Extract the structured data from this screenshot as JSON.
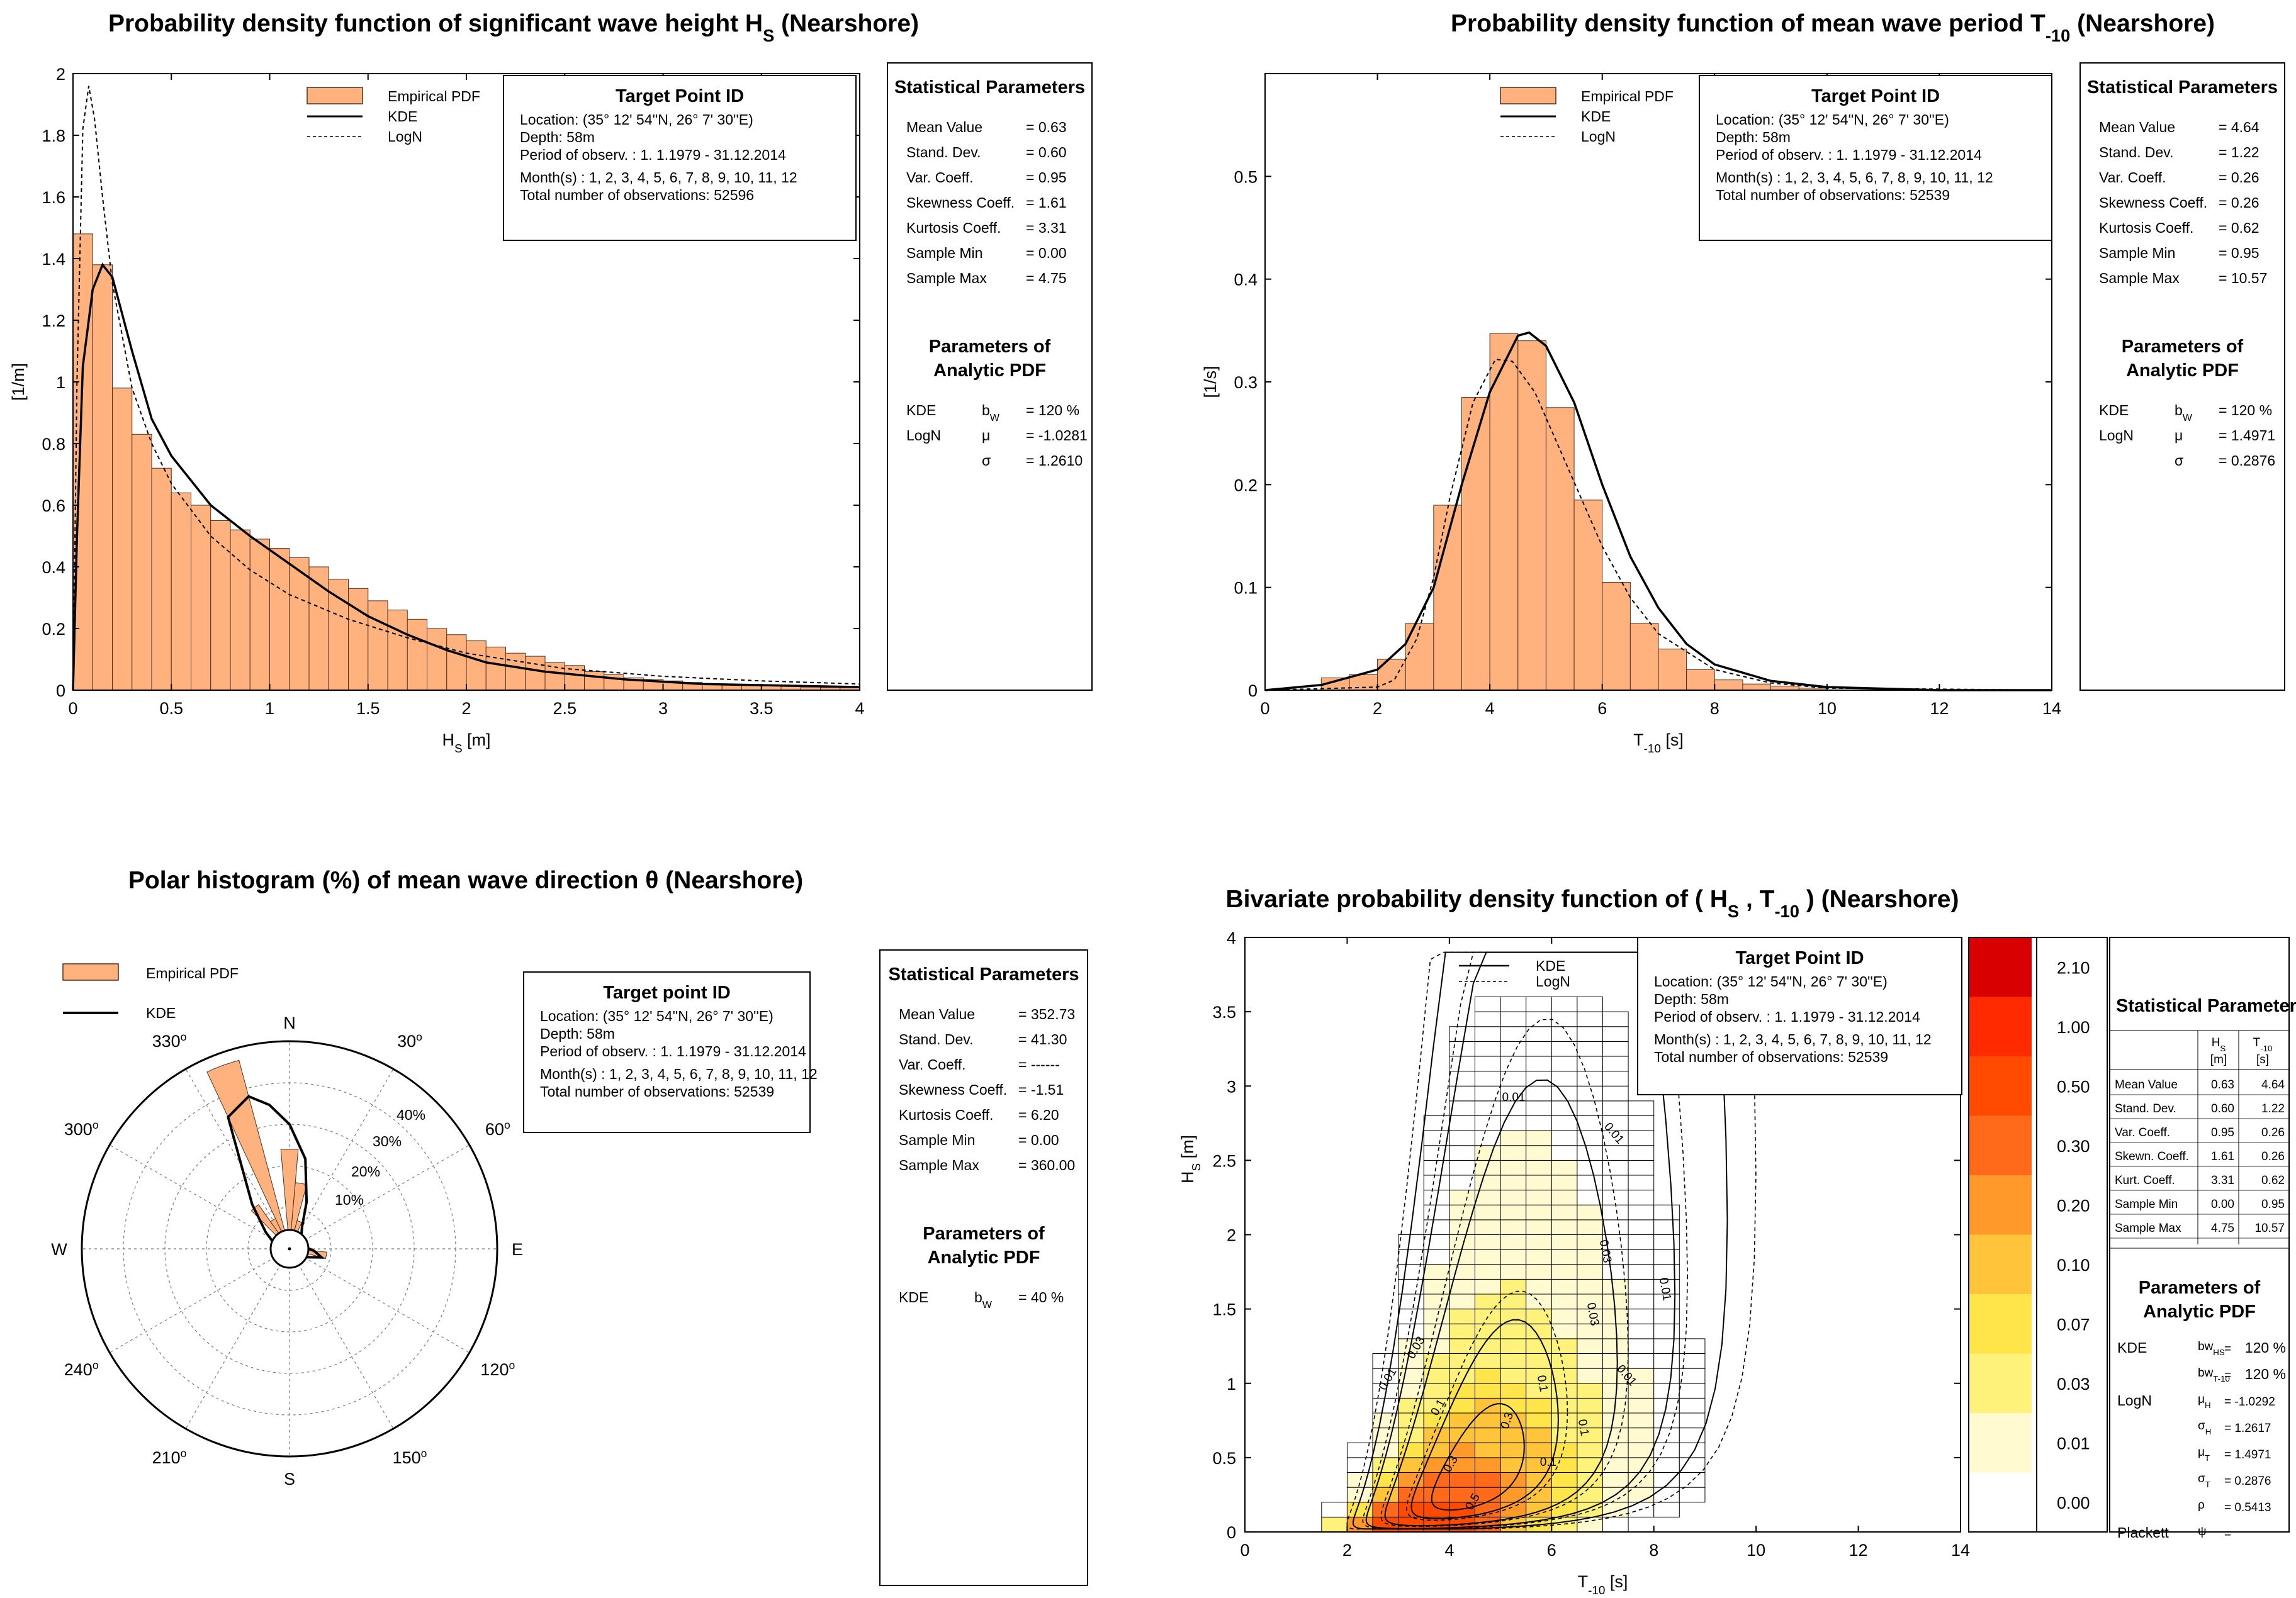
{
  "colors": {
    "bar": "#ffb27d",
    "bar_edge": "#4a3020",
    "line": "#000000"
  },
  "chart_data": [
    {
      "id": "hs_pdf",
      "type": "bar",
      "title_main": "Probability density function of significant wave height H",
      "title_sub": "S",
      "title_tail": "  (Nearshore)",
      "xlabel_main": "H",
      "xlabel_sub": "S",
      "xlabel_tail": " [m]",
      "ylabel": "[1/m]",
      "xlim": [
        0,
        4
      ],
      "ylim": [
        0,
        2
      ],
      "xticks": [
        "0",
        "0.5",
        "1",
        "1.5",
        "2",
        "2.5",
        "3",
        "3.5",
        "4"
      ],
      "yticks": [
        "0",
        "0.2",
        "0.4",
        "0.6",
        "0.8",
        "1",
        "1.2",
        "1.4",
        "1.6",
        "1.8",
        "2"
      ],
      "legend": [
        "Empirical PDF",
        "KDE",
        "LogN"
      ],
      "bin_width": 0.1,
      "bars": [
        1.48,
        1.38,
        0.98,
        0.83,
        0.72,
        0.64,
        0.6,
        0.55,
        0.52,
        0.49,
        0.46,
        0.43,
        0.4,
        0.36,
        0.33,
        0.29,
        0.26,
        0.23,
        0.2,
        0.18,
        0.16,
        0.14,
        0.12,
        0.11,
        0.09,
        0.08,
        0.06,
        0.05,
        0.04,
        0.035,
        0.03,
        0.025,
        0.02,
        0.018,
        0.016,
        0.014,
        0.012,
        0.01,
        0.009,
        0.008
      ],
      "kde": [
        [
          0,
          0
        ],
        [
          0.02,
          0.5
        ],
        [
          0.05,
          1.05
        ],
        [
          0.1,
          1.3
        ],
        [
          0.15,
          1.38
        ],
        [
          0.2,
          1.34
        ],
        [
          0.3,
          1.1
        ],
        [
          0.4,
          0.88
        ],
        [
          0.5,
          0.76
        ],
        [
          0.7,
          0.6
        ],
        [
          0.9,
          0.5
        ],
        [
          1.1,
          0.41
        ],
        [
          1.3,
          0.32
        ],
        [
          1.5,
          0.24
        ],
        [
          1.7,
          0.18
        ],
        [
          1.9,
          0.13
        ],
        [
          2.1,
          0.09
        ],
        [
          2.4,
          0.06
        ],
        [
          2.8,
          0.035
        ],
        [
          3.2,
          0.02
        ],
        [
          4,
          0.01
        ]
      ],
      "logn": [
        [
          0,
          0
        ],
        [
          0.02,
          1.0
        ],
        [
          0.05,
          1.82
        ],
        [
          0.08,
          1.96
        ],
        [
          0.11,
          1.85
        ],
        [
          0.15,
          1.6
        ],
        [
          0.2,
          1.32
        ],
        [
          0.3,
          0.98
        ],
        [
          0.4,
          0.8
        ],
        [
          0.5,
          0.67
        ],
        [
          0.7,
          0.5
        ],
        [
          0.9,
          0.39
        ],
        [
          1.1,
          0.31
        ],
        [
          1.4,
          0.23
        ],
        [
          1.7,
          0.17
        ],
        [
          2,
          0.12
        ],
        [
          2.5,
          0.07
        ],
        [
          3,
          0.045
        ],
        [
          3.5,
          0.03
        ],
        [
          4,
          0.02
        ]
      ],
      "target": {
        "title": "Target Point ID",
        "lines": [
          "Location:  (35° 12' 54''N, 26° 7' 30''E)",
          "Depth:  58m",
          "Period of observ. : 1. 1.1979 - 31.12.2014",
          "Month(s) : 1, 2, 3, 4, 5, 6, 7, 8, 9, 10, 11, 12",
          "Total number of observations: 52596"
        ]
      },
      "stats": {
        "title": "Statistical Parameters",
        "rows": [
          [
            "Mean Value",
            "= 0.63"
          ],
          [
            "Stand. Dev.",
            "= 0.60"
          ],
          [
            "Var. Coeff.",
            "= 0.95"
          ],
          [
            "Skewness Coeff.",
            "= 1.61"
          ],
          [
            "Kurtosis Coeff.",
            "= 3.31"
          ],
          [
            "Sample Min",
            "= 0.00"
          ],
          [
            "Sample Max",
            "= 4.75"
          ]
        ],
        "params_title": [
          "Parameters of",
          "Analytic PDF"
        ],
        "params": [
          [
            "KDE",
            "b",
            "W",
            "= 120 %"
          ],
          [
            "LogN",
            "μ",
            "",
            "= -1.0281"
          ],
          [
            "",
            "σ",
            "",
            "= 1.2610"
          ]
        ]
      }
    },
    {
      "id": "tm10_pdf",
      "type": "bar",
      "title_main": "Probability density function of mean wave period T",
      "title_sub": "-10",
      "title_tail": "  (Nearshore)",
      "xlabel_main": "T",
      "xlabel_sub": "-10",
      "xlabel_tail": " [s]",
      "ylabel": "[1/s]",
      "xlim": [
        0,
        14
      ],
      "ylim": [
        0,
        0.6
      ],
      "xticks": [
        "0",
        "2",
        "4",
        "6",
        "8",
        "10",
        "12",
        "14"
      ],
      "yticks": [
        "0",
        "0.1",
        "0.2",
        "0.3",
        "0.4",
        "0.5"
      ],
      "legend": [
        "Empirical PDF",
        "KDE",
        "LogN"
      ],
      "bin_start": 1.0,
      "bin_width": 0.5,
      "bars": [
        0.012,
        0.015,
        0.03,
        0.065,
        0.18,
        0.285,
        0.347,
        0.34,
        0.275,
        0.185,
        0.105,
        0.065,
        0.04,
        0.02,
        0.01,
        0.006,
        0.004,
        0.002
      ],
      "kde": [
        [
          0,
          0
        ],
        [
          1,
          0.005
        ],
        [
          2,
          0.02
        ],
        [
          2.5,
          0.045
        ],
        [
          3,
          0.1
        ],
        [
          3.5,
          0.2
        ],
        [
          4,
          0.29
        ],
        [
          4.5,
          0.345
        ],
        [
          4.7,
          0.348
        ],
        [
          5,
          0.335
        ],
        [
          5.5,
          0.28
        ],
        [
          6,
          0.2
        ],
        [
          6.5,
          0.13
        ],
        [
          7,
          0.08
        ],
        [
          7.5,
          0.045
        ],
        [
          8,
          0.025
        ],
        [
          9,
          0.009
        ],
        [
          10,
          0.003
        ],
        [
          12,
          0
        ],
        [
          14,
          0
        ]
      ],
      "logn": [
        [
          0,
          0
        ],
        [
          2,
          0.003
        ],
        [
          2.3,
          0.01
        ],
        [
          2.7,
          0.05
        ],
        [
          3,
          0.11
        ],
        [
          3.3,
          0.19
        ],
        [
          3.7,
          0.28
        ],
        [
          4.1,
          0.322
        ],
        [
          4.4,
          0.32
        ],
        [
          4.8,
          0.29
        ],
        [
          5.2,
          0.24
        ],
        [
          5.6,
          0.19
        ],
        [
          6,
          0.14
        ],
        [
          6.5,
          0.09
        ],
        [
          7,
          0.055
        ],
        [
          8,
          0.02
        ],
        [
          9,
          0.007
        ],
        [
          10,
          0.002
        ],
        [
          14,
          0
        ]
      ],
      "target": {
        "title": "Target Point ID",
        "lines": [
          "Location:  (35° 12' 54''N, 26° 7' 30''E)",
          "Depth:  58m",
          "Period of observ. : 1. 1.1979 - 31.12.2014",
          "Month(s) : 1, 2, 3, 4, 5, 6, 7, 8, 9, 10, 11, 12",
          "Total number of observations: 52539"
        ]
      },
      "stats": {
        "title": "Statistical Parameters",
        "rows": [
          [
            "Mean Value",
            "= 4.64"
          ],
          [
            "Stand. Dev.",
            "= 1.22"
          ],
          [
            "Var. Coeff.",
            "= 0.26"
          ],
          [
            "Skewness Coeff.",
            "= 0.26"
          ],
          [
            "Kurtosis Coeff.",
            "= 0.62"
          ],
          [
            "Sample Min",
            "= 0.95"
          ],
          [
            "Sample Max",
            "= 10.57"
          ]
        ],
        "params_title": [
          "Parameters of",
          "Analytic PDF"
        ],
        "params": [
          [
            "KDE",
            "b",
            "W",
            "= 120 %"
          ],
          [
            "LogN",
            "μ",
            "",
            "= 1.4971"
          ],
          [
            "",
            "σ",
            "",
            "= 0.2876"
          ]
        ]
      }
    },
    {
      "id": "dir_polar",
      "type": "polar",
      "title": "Polar histogram (%) of mean wave direction  θ  (Nearshore)",
      "legend": [
        "Empirical PDF",
        "KDE"
      ],
      "rlim": [
        0,
        50
      ],
      "rings": [
        "10%",
        "20%",
        "30%",
        "40%"
      ],
      "cardinals": [
        "N",
        "E",
        "S",
        "W"
      ],
      "angle_labels": [
        [
          "30",
          "30"
        ],
        [
          "60",
          "60"
        ],
        [
          "120",
          "120"
        ],
        [
          "150",
          "150"
        ],
        [
          "210",
          "210"
        ],
        [
          "240",
          "240"
        ],
        [
          "300",
          "300"
        ],
        [
          "330",
          "330"
        ]
      ],
      "sectors": [
        {
          "center": 0,
          "value": 24
        },
        {
          "center": 10,
          "value": 16
        },
        {
          "center": 20,
          "value": 7
        },
        {
          "center": 30,
          "value": 4
        },
        {
          "center": 90,
          "value": 2
        },
        {
          "center": 100,
          "value": 9
        },
        {
          "center": 110,
          "value": 4
        },
        {
          "center": 340,
          "value": 47
        },
        {
          "center": 330,
          "value": 8
        },
        {
          "center": 320,
          "value": 13
        },
        {
          "center": 310,
          "value": 4
        },
        {
          "center": 190,
          "value": 2
        }
      ],
      "kde": [
        [
          0,
          30
        ],
        [
          10,
          22
        ],
        [
          20,
          12
        ],
        [
          30,
          6
        ],
        [
          45,
          4
        ],
        [
          60,
          3.5
        ],
        [
          80,
          3.5
        ],
        [
          95,
          6
        ],
        [
          105,
          8
        ],
        [
          120,
          4
        ],
        [
          150,
          3
        ],
        [
          180,
          3
        ],
        [
          210,
          3
        ],
        [
          240,
          3
        ],
        [
          270,
          3
        ],
        [
          290,
          4
        ],
        [
          305,
          7
        ],
        [
          320,
          14
        ],
        [
          335,
          35
        ],
        [
          345,
          38
        ],
        [
          352,
          35
        ],
        [
          360,
          30
        ]
      ],
      "target": {
        "title": "Target point ID",
        "lines": [
          "Location:  (35° 12' 54''N, 26° 7' 30''E)",
          "Depth:  58m",
          "Period of observ. : 1. 1.1979 - 31.12.2014",
          "Month(s) : 1, 2, 3, 4, 5, 6, 7, 8, 9, 10, 11, 12",
          "Total number of observations: 52539"
        ]
      },
      "stats": {
        "title": "Statistical Parameters",
        "rows": [
          [
            "Mean Value",
            "= 352.73"
          ],
          [
            "Stand. Dev.",
            "= 41.30"
          ],
          [
            "Var. Coeff.",
            "= ------"
          ],
          [
            "Skewness Coeff.",
            "= -1.51"
          ],
          [
            "Kurtosis Coeff.",
            "= 6.20"
          ],
          [
            "Sample Min",
            "= 0.00"
          ],
          [
            "Sample Max",
            "= 360.00"
          ]
        ],
        "params_title": [
          "Parameters of",
          "Analytic PDF"
        ],
        "params": [
          [
            "KDE",
            "b",
            "W",
            "= 40 %"
          ]
        ]
      }
    },
    {
      "id": "bivariate",
      "type": "heatmap",
      "title_main": "Bivariate probability density function of ( H",
      "title_sub1": "S",
      "title_mid": " , T",
      "title_sub2": "-10",
      "title_tail": " ) (Nearshore)",
      "xlabel_main": "T",
      "xlabel_sub": "-10",
      "xlabel_tail": " [s]",
      "ylabel_main": "H",
      "ylabel_sub": "S",
      "ylabel_tail": " [m]",
      "xlim": [
        0,
        14
      ],
      "ylim": [
        0,
        4
      ],
      "xticks": [
        "0",
        "2",
        "4",
        "6",
        "8",
        "10",
        "12",
        "14"
      ],
      "yticks": [
        "0",
        "0.5",
        "1",
        "1.5",
        "2",
        "2.5",
        "3",
        "3.5",
        "4"
      ],
      "legend": [
        "KDE",
        "LogN"
      ],
      "colorbar_labels": [
        "2.10",
        "1.00",
        "0.50",
        "0.30",
        "0.20",
        "0.10",
        "0.07",
        "0.03",
        "0.01",
        "0.00"
      ],
      "colorbar_colors": [
        "#d80000",
        "#ff2a00",
        "#ff4a00",
        "#ff6a1a",
        "#ff9a2a",
        "#ffc43a",
        "#ffe44a",
        "#fff27a",
        "#fffad0",
        "#ffffff"
      ],
      "contour_labels": [
        "0.01",
        "0.03",
        "0.1",
        "0.3",
        "0.5"
      ],
      "target": {
        "title": "Target Point ID",
        "lines": [
          "Location:  (35° 12' 54''N, 26° 7' 30''E)",
          "Depth:  58m",
          "Period of observ. : 1. 1.1979 - 31.12.2014",
          "Month(s) : 1, 2, 3, 4, 5, 6, 7, 8, 9, 10, 11, 12",
          "Total number of observations: 52539"
        ]
      },
      "stats": {
        "title": "Statistical Parameters",
        "col_heads": [
          "H",
          "T"
        ],
        "col_subs": [
          "S",
          "-10"
        ],
        "units": [
          "[m]",
          "[s]"
        ],
        "rows": [
          [
            "Mean Value",
            "0.63",
            "4.64"
          ],
          [
            "Stand. Dev.",
            "0.60",
            "1.22"
          ],
          [
            "Var. Coeff.",
            "0.95",
            "0.26"
          ],
          [
            "Skewn. Coeff.",
            "1.61",
            "0.26"
          ],
          [
            "Kurt. Coeff.",
            "3.31",
            "0.62"
          ],
          [
            "Sample Min",
            "0.00",
            "0.95"
          ],
          [
            "Sample Max",
            "4.75",
            "10.57"
          ]
        ],
        "params_title": [
          "Parameters of",
          "Analytic PDF"
        ],
        "params": [
          [
            "KDE",
            "bw",
            "HS",
            "=",
            "120 %"
          ],
          [
            "",
            "bw",
            "T-10",
            "=",
            "120 %"
          ],
          [
            "LogN",
            "μ",
            "H",
            "= -1.0292",
            ""
          ],
          [
            "",
            "σ",
            "H",
            "= 1.2617",
            ""
          ],
          [
            "",
            "μ",
            "T",
            "= 1.4971",
            ""
          ],
          [
            "",
            "σ",
            "T",
            "= 0.2876",
            ""
          ],
          [
            "",
            "ρ",
            "",
            "= 0.5413",
            ""
          ],
          [
            "Plackett",
            "ψ",
            "",
            "=",
            ""
          ]
        ]
      }
    }
  ]
}
